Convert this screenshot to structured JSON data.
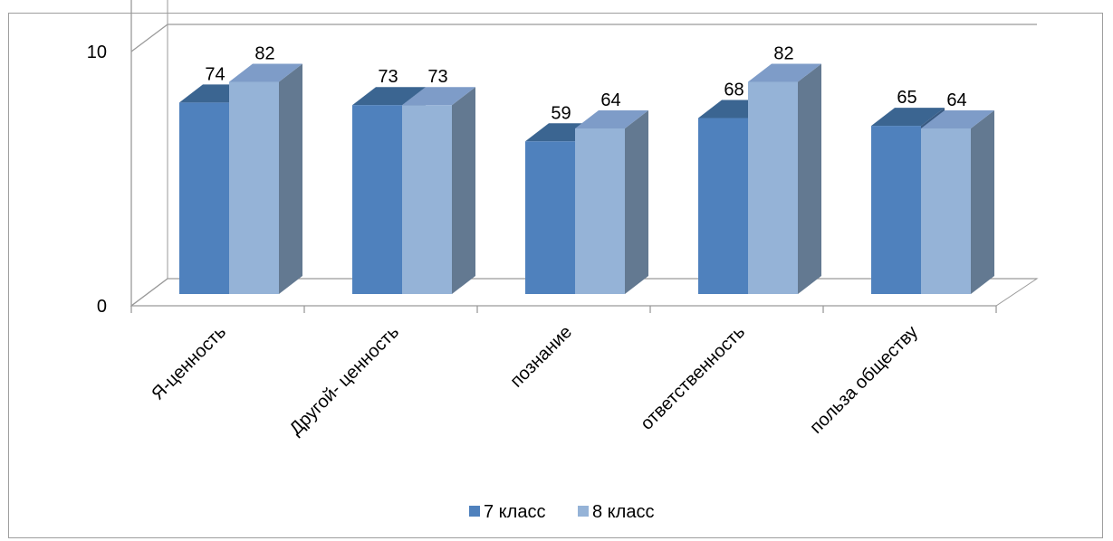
{
  "chart_data": {
    "type": "bar",
    "title": "",
    "xlabel": "",
    "ylabel": "",
    "categories": [
      "Я-ценность",
      "Другой- ценность",
      "познание",
      "ответственность",
      "польза обществу"
    ],
    "series": [
      {
        "name": "7 класс",
        "values": [
          74,
          73,
          59,
          68,
          65
        ]
      },
      {
        "name": "8 класс",
        "values": [
          82,
          73,
          64,
          82,
          64
        ]
      }
    ],
    "ylim": [
      0,
      90
    ],
    "yticks": [
      0,
      10,
      20,
      30,
      40,
      50,
      60,
      70,
      80,
      90
    ],
    "grid": true,
    "style_3d": true,
    "legend_position": "bottom",
    "colors": {
      "series": [
        "#4f81bd",
        "#95b3d7"
      ],
      "tops": [
        "#3b6591",
        "#7e9cc8"
      ],
      "sides": [
        "#395a82",
        "#637991"
      ],
      "grid": "#9a9a9a"
    }
  }
}
